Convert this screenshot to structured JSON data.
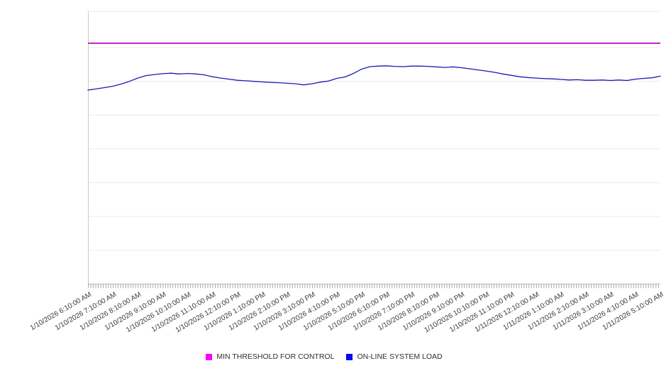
{
  "chart_data": {
    "type": "line",
    "title": "",
    "legend_position": "bottom",
    "x_axis": {
      "tick_labels": [
        "1/10/2026 6:10:00 AM",
        "1/10/2026 7:10:00 AM",
        "1/10/2026 8:10:00 AM",
        "1/10/2026 9:10:00 AM",
        "1/10/2026 10:10:00 AM",
        "1/10/2026 11:10:00 AM",
        "1/10/2026 12:10:00 PM",
        "1/10/2026 1:10:00 PM",
        "1/10/2026 2:10:00 PM",
        "1/10/2026 3:10:00 PM",
        "1/10/2026 4:10:00 PM",
        "1/10/2026 5:10:00 PM",
        "1/10/2026 6:10:00 PM",
        "1/10/2026 7:10:00 PM",
        "1/10/2026 8:10:00 PM",
        "1/10/2026 9:10:00 PM",
        "1/10/2026 10:10:00 PM",
        "1/10/2026 11:10:00 PM",
        "1/11/2026 12:10:00 AM",
        "1/11/2026 1:10:00 AM",
        "1/11/2026 2:10:00 AM",
        "1/11/2026 3:10:00 AM",
        "1/11/2026 4:10:00 AM",
        "1/11/2026 5:10:00 AM"
      ],
      "minor_ticks_per_hour": 10,
      "label_rotation_deg": -30
    },
    "y_axis": {
      "tick_labels_visible": false,
      "unit": "percent of plot height (y-axis is unlabeled in source image)",
      "range_percent": [
        0,
        100
      ],
      "gridline_divisions": 8
    },
    "series": [
      {
        "name": "MIN THRESHOLD FOR CONTROL",
        "type": "horizontal-threshold",
        "color_legend": "#fb00fb",
        "color_line": "#c52fc5",
        "value_percent": 88.3
      },
      {
        "name": "ON-LINE SYSTEM LOAD",
        "type": "line",
        "color_legend": "#0505f0",
        "color_line": "#1b1bb3",
        "values_percent": [
          71.1,
          71.5,
          72.0,
          72.5,
          73.3,
          74.3,
          75.5,
          76.4,
          76.8,
          77.1,
          77.3,
          77.0,
          77.2,
          77.0,
          76.7,
          76.0,
          75.5,
          75.1,
          74.7,
          74.5,
          74.3,
          74.1,
          73.9,
          73.8,
          73.6,
          73.4,
          73.0,
          73.4,
          74.0,
          74.4,
          75.4,
          75.9,
          77.2,
          78.8,
          79.7,
          79.9,
          80.0,
          79.8,
          79.7,
          79.9,
          79.9,
          79.8,
          79.6,
          79.4,
          79.6,
          79.3,
          78.9,
          78.5,
          78.1,
          77.6,
          77.0,
          76.5,
          76.0,
          75.7,
          75.5,
          75.3,
          75.2,
          75.0,
          74.8,
          74.9,
          74.7,
          74.7,
          74.8,
          74.6,
          74.8,
          74.6,
          75.1,
          75.4,
          75.6,
          76.2
        ]
      }
    ]
  }
}
